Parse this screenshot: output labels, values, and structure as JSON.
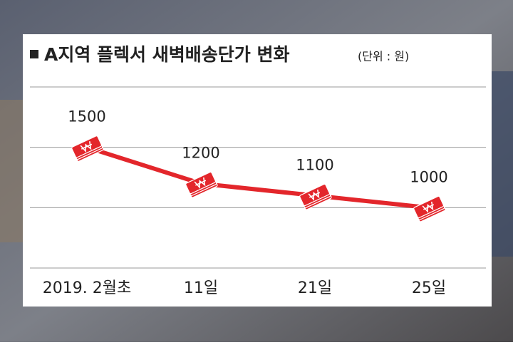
{
  "chart_data": {
    "type": "line",
    "title": "A지역 플렉서 새벽배송단가 변화",
    "subtitle": "(단위 : 원)",
    "categories": [
      "2019. 2월초",
      "11일",
      "21일",
      "25일"
    ],
    "values": [
      1500,
      1200,
      1100,
      1000
    ],
    "color": "#e3262b",
    "ylim": [
      500,
      2000
    ],
    "grid": true
  }
}
